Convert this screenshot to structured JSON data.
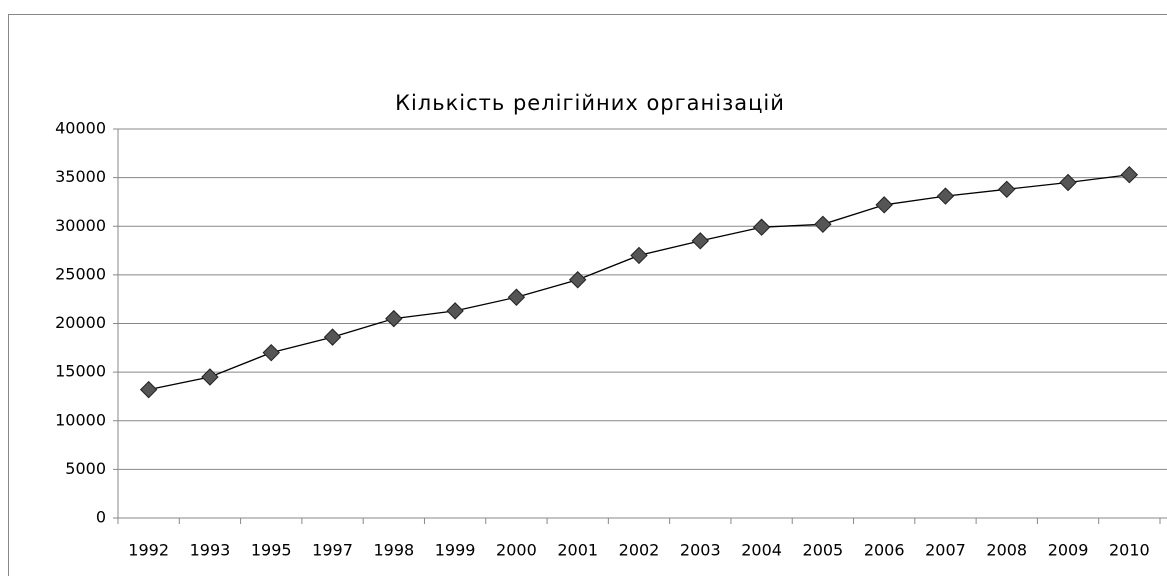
{
  "chart_data": {
    "type": "line",
    "title": "Кількість релігійних організацій",
    "categories": [
      "1992",
      "1993",
      "1995",
      "1997",
      "1998",
      "1999",
      "2000",
      "2001",
      "2002",
      "2003",
      "2004",
      "2005",
      "2006",
      "2007",
      "2008",
      "2009",
      "2010"
    ],
    "series": [
      {
        "color": "#555555",
        "values": [
          13200,
          14500,
          17000,
          18600,
          20500,
          21300,
          22700,
          24500,
          27000,
          28500,
          29900,
          30200,
          32200,
          33100,
          33800,
          34500,
          35300
        ]
      }
    ],
    "ylim": [
      0,
      40000
    ],
    "yticks": [
      0,
      5000,
      10000,
      15000,
      20000,
      25000,
      30000,
      35000,
      40000
    ],
    "grid": true
  }
}
